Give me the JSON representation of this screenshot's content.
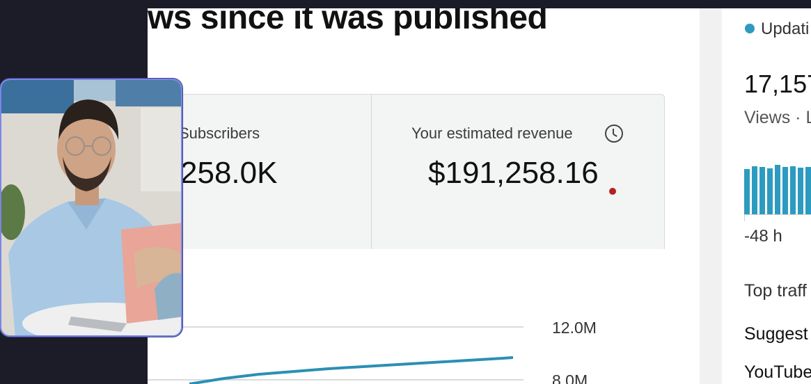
{
  "video": {
    "headline": "ws since it was published"
  },
  "metrics": {
    "subscribers_label": "Subscribers",
    "subscribers_value": "258.0K",
    "revenue_label": "Your estimated revenue",
    "revenue_value": "$191,258.16",
    "revenue_info_icon": "clock-icon"
  },
  "chart": {
    "ticks": [
      "12.0M",
      "8.0M"
    ]
  },
  "realtime": {
    "status": "Updati",
    "views_value": "17,157",
    "views_label": "Views · L",
    "time_label": "-48 h",
    "bar_heights": [
      0.86,
      0.91,
      0.89,
      0.87,
      0.93,
      0.9,
      0.91,
      0.88,
      0.9
    ],
    "accent": "#2c9bbf"
  },
  "traffic": {
    "title": "Top traff",
    "items": [
      "Suggest",
      "YouTube"
    ]
  },
  "webcam": {
    "icon": "presenter-video-icon"
  }
}
